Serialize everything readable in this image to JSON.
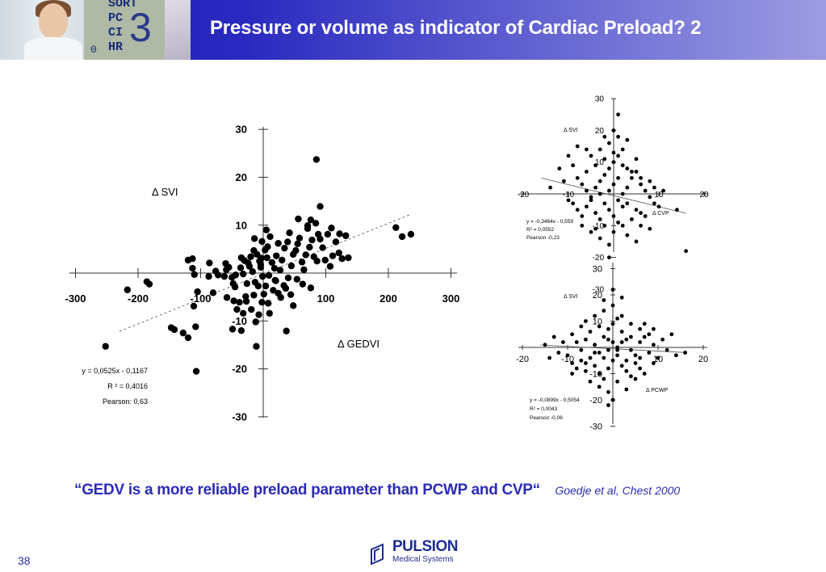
{
  "slide": {
    "title": "Pressure or volume as indicator of Cardiac Preload? 2",
    "page_number": "38",
    "quote": "“GEDV is a more reliable preload parameter than PCWP and CVP“",
    "citation": "Goedje et al, Chest 2000",
    "logo": {
      "name": "PULSION",
      "subtitle": "Medical Systems"
    },
    "header_photo": {
      "monitor_labels": [
        "SORT",
        "PC",
        "CI",
        "HR"
      ],
      "monitor_zero": "0",
      "monitor_big": "3"
    },
    "colors": {
      "header_start": "#1a1ab4",
      "header_end": "#9c9ce2",
      "accent_text": "#2b2bb8"
    }
  },
  "chart_data": [
    {
      "type": "scatter",
      "xlabel": "Δ GEDVI",
      "ylabel": "Δ SVI",
      "xlim": [
        -300,
        300
      ],
      "ylim": [
        -30,
        30
      ],
      "x_ticks": [
        -300,
        -200,
        -100,
        100,
        200,
        300
      ],
      "y_ticks": [
        30,
        20,
        10,
        -10,
        -20,
        -30
      ],
      "x_tick_labels": [
        "-300",
        "-200",
        "-100",
        "100",
        "200",
        "300"
      ],
      "y_tick_labels": [
        "30",
        "20",
        "10",
        "-10",
        "-20",
        "-30"
      ],
      "stats": [
        "y = 0,0525x - 0,1167",
        "R ² = 0,4016",
        "Pearson: 0,63"
      ],
      "regression": {
        "slope": 0.0525,
        "intercept": -0.1167,
        "x_range": [
          -230,
          235
        ]
      },
      "points": [
        [
          -252,
          -15.3
        ],
        [
          -217,
          -3.5
        ],
        [
          -186,
          -1.8
        ],
        [
          -182,
          -2.3
        ],
        [
          -147,
          -11.4
        ],
        [
          -142,
          -11.8
        ],
        [
          -128,
          -12.5
        ],
        [
          -120,
          -13.5
        ],
        [
          -108,
          -11.2
        ],
        [
          -113,
          1
        ],
        [
          -113,
          3
        ],
        [
          -120,
          2.7
        ],
        [
          -110,
          -0.3
        ],
        [
          -105,
          -3.9
        ],
        [
          -111,
          -6.9
        ],
        [
          -87,
          -0.7
        ],
        [
          -76,
          0.4
        ],
        [
          -60,
          2
        ],
        [
          -44,
          -0.4
        ],
        [
          -49,
          -11.7
        ],
        [
          -35,
          -12
        ],
        [
          -107,
          -20.5
        ],
        [
          -86,
          2.1
        ],
        [
          -80,
          -4.1
        ],
        [
          -72,
          -0.4
        ],
        [
          -62,
          -0.7
        ],
        [
          -59,
          0.7
        ],
        [
          -55,
          1.2
        ],
        [
          -50,
          -0.9
        ],
        [
          -48,
          -2.2
        ],
        [
          -45,
          -2.9
        ],
        [
          -36,
          1.1
        ],
        [
          -32,
          -0.2
        ],
        [
          -28,
          -4.9
        ],
        [
          -26,
          -2.2
        ],
        [
          -22,
          1.4
        ],
        [
          -17,
          0.3
        ],
        [
          -13,
          -1.9
        ],
        [
          -8,
          -2.7
        ],
        [
          -58,
          -5.1
        ],
        [
          -47,
          -5.8
        ],
        [
          -42,
          -7.6
        ],
        [
          -38,
          -6.1
        ],
        [
          -32,
          -8.4
        ],
        [
          -27,
          -5.9
        ],
        [
          -19,
          -7.6
        ],
        [
          -15,
          -4.6
        ],
        [
          -12,
          -10.2
        ],
        [
          -7,
          -8.7
        ],
        [
          -2,
          -6.1
        ],
        [
          -35,
          3.2
        ],
        [
          -30,
          2.6
        ],
        [
          -24,
          2.1
        ],
        [
          -20,
          3.4
        ],
        [
          -15,
          4.7
        ],
        [
          -10,
          3.9
        ],
        [
          -6,
          2.5
        ],
        [
          -3,
          3.1
        ],
        [
          -4,
          1.2
        ],
        [
          -1,
          -0.7
        ],
        [
          1,
          -4.4
        ],
        [
          4,
          -2.7
        ],
        [
          8,
          -6.3
        ],
        [
          10,
          -8.4
        ],
        [
          16,
          -3.6
        ],
        [
          20,
          -1.6
        ],
        [
          24,
          -4.2
        ],
        [
          28,
          -5.1
        ],
        [
          33,
          -2.6
        ],
        [
          40,
          -1
        ],
        [
          44,
          -4.5
        ],
        [
          48,
          -6.8
        ],
        [
          37,
          -12.1
        ],
        [
          -11,
          -15.3
        ],
        [
          -4,
          1.8
        ],
        [
          3,
          4.8
        ],
        [
          6,
          3.2
        ],
        [
          7,
          5.5
        ],
        [
          11,
          7.6
        ],
        [
          14,
          2.2
        ],
        [
          18,
          1
        ],
        [
          21,
          3.6
        ],
        [
          24,
          6.2
        ],
        [
          27,
          0.6
        ],
        [
          30,
          2.7
        ],
        [
          34,
          5.2
        ],
        [
          39,
          6.5
        ],
        [
          42,
          8.4
        ],
        [
          45,
          1.5
        ],
        [
          48,
          3.9
        ],
        [
          52,
          4.7
        ],
        [
          55,
          6.1
        ],
        [
          58,
          7.3
        ],
        [
          62,
          2.3
        ],
        [
          65,
          0.7
        ],
        [
          68,
          3.8
        ],
        [
          71,
          9.3
        ],
        [
          74,
          5.4
        ],
        [
          78,
          6.9
        ],
        [
          81,
          3.4
        ],
        [
          86,
          2.5
        ],
        [
          88,
          8.1
        ],
        [
          91,
          7.1
        ],
        [
          95,
          5.3
        ],
        [
          99,
          2.7
        ],
        [
          103,
          8.1
        ],
        [
          107,
          1.4
        ],
        [
          111,
          3.6
        ],
        [
          116,
          6.5
        ],
        [
          121,
          4.2
        ],
        [
          126,
          3
        ],
        [
          132,
          7.8
        ],
        [
          136,
          3.2
        ],
        [
          19,
          -1.5
        ],
        [
          9,
          -0.5
        ],
        [
          54,
          -1.3
        ],
        [
          63,
          -2.3
        ],
        [
          76,
          -3.1
        ],
        [
          71,
          9.9
        ],
        [
          76,
          11.1
        ],
        [
          84,
          10.4
        ],
        [
          91,
          13.9
        ],
        [
          109,
          9.4
        ],
        [
          122,
          8.2
        ],
        [
          56,
          11.3
        ],
        [
          5,
          9
        ],
        [
          -14,
          7.2
        ],
        [
          -2,
          6.6
        ],
        [
          36,
          -3.2
        ],
        [
          85,
          23.7
        ],
        [
          212,
          9.5
        ],
        [
          222,
          7.6
        ],
        [
          236,
          8.1
        ]
      ]
    },
    {
      "type": "scatter",
      "xlabel": "Δ CVP",
      "ylabel": "Δ SVI",
      "xlim": [
        -20,
        20
      ],
      "ylim": [
        -30,
        30
      ],
      "x_ticks": [
        -20,
        -10,
        10,
        20
      ],
      "y_ticks": [
        30,
        20,
        10,
        -10,
        -20,
        -30
      ],
      "x_tick_labels": [
        "-20",
        "-10",
        "10",
        "20"
      ],
      "y_tick_labels": [
        "30",
        "20",
        "10",
        "-10",
        "-20",
        "-30"
      ],
      "stats": [
        "y = -0,3464x - 0,559",
        "R² = 0,0552",
        "Pearson -0,23"
      ],
      "regression": {
        "slope": -0.3464,
        "intercept": -0.559,
        "x_range": [
          -16,
          16
        ]
      },
      "points": [
        [
          -9,
          9
        ],
        [
          -8,
          5
        ],
        [
          -7,
          3
        ],
        [
          -6,
          1
        ],
        [
          -5,
          -1
        ],
        [
          -4,
          2
        ],
        [
          -3,
          4
        ],
        [
          -2,
          6
        ],
        [
          -1,
          8
        ],
        [
          0,
          10
        ],
        [
          1,
          12
        ],
        [
          2,
          14
        ],
        [
          -9,
          -3
        ],
        [
          -8,
          -5
        ],
        [
          -7,
          -7
        ],
        [
          -6,
          -4
        ],
        [
          -5,
          -2
        ],
        [
          -4,
          -6
        ],
        [
          -3,
          -8
        ],
        [
          -2,
          -3
        ],
        [
          -1,
          -5
        ],
        [
          0,
          -7
        ],
        [
          1,
          -9
        ],
        [
          2,
          -4
        ],
        [
          3,
          2
        ],
        [
          4,
          5
        ],
        [
          5,
          7
        ],
        [
          6,
          3
        ],
        [
          7,
          1
        ],
        [
          8,
          -1
        ],
        [
          9,
          -3
        ],
        [
          -6,
          7
        ],
        [
          -4,
          9
        ],
        [
          -2,
          11
        ],
        [
          0,
          13
        ],
        [
          2,
          9
        ],
        [
          4,
          7
        ],
        [
          6,
          5
        ],
        [
          8,
          4
        ],
        [
          -5,
          12
        ],
        [
          -3,
          14
        ],
        [
          -1,
          16
        ],
        [
          1,
          18
        ],
        [
          -7,
          -10
        ],
        [
          -5,
          -12
        ],
        [
          -3,
          -14
        ],
        [
          -1,
          -16
        ],
        [
          0,
          -12
        ],
        [
          2,
          -10
        ],
        [
          4,
          -8
        ],
        [
          6,
          -6
        ],
        [
          -2,
          -10
        ],
        [
          1,
          -2
        ],
        [
          0,
          3
        ],
        [
          -1,
          1
        ],
        [
          3,
          -3
        ],
        [
          2,
          0
        ],
        [
          -3,
          0
        ],
        [
          5,
          -5
        ],
        [
          7,
          -7
        ],
        [
          9,
          2
        ],
        [
          10,
          -4
        ],
        [
          11,
          1
        ],
        [
          -11,
          4
        ],
        [
          -10,
          -2
        ],
        [
          -12,
          8
        ],
        [
          -10,
          12
        ],
        [
          -8,
          15
        ],
        [
          1,
          25
        ],
        [
          0,
          20
        ],
        [
          3,
          17
        ],
        [
          -2,
          18
        ],
        [
          14,
          -5
        ],
        [
          16,
          -18
        ],
        [
          6,
          -10
        ],
        [
          3,
          -13
        ],
        [
          -1,
          -20
        ],
        [
          5,
          -15
        ],
        [
          8,
          -11
        ],
        [
          -4,
          -11
        ],
        [
          1,
          5
        ],
        [
          3,
          8
        ],
        [
          5,
          11
        ],
        [
          -6,
          14
        ],
        [
          -14,
          2
        ]
      ]
    },
    {
      "type": "scatter",
      "xlabel": "Δ PCWP",
      "ylabel": "Δ SVI",
      "xlim": [
        -20,
        20
      ],
      "ylim": [
        -30,
        30
      ],
      "x_ticks": [
        -20,
        -10,
        10,
        20
      ],
      "y_ticks": [
        30,
        20,
        10,
        -10,
        -20,
        -30
      ],
      "x_tick_labels": [
        "-20",
        "-10",
        "10",
        "20"
      ],
      "y_tick_labels": [
        "30",
        "20",
        "10",
        "-10",
        "-20",
        "-30"
      ],
      "stats": [
        "y = -0,0899x - 0,5054",
        "R² = 0,0043",
        "Pearson -0,06"
      ],
      "regression": {
        "slope": -0.0899,
        "intercept": -0.5054,
        "x_range": [
          -16,
          16
        ]
      },
      "points": [
        [
          -9,
          5
        ],
        [
          -8,
          2
        ],
        [
          -7,
          -1
        ],
        [
          -6,
          3
        ],
        [
          -5,
          6
        ],
        [
          -4,
          1
        ],
        [
          -3,
          -2
        ],
        [
          -2,
          4
        ],
        [
          -1,
          7
        ],
        [
          0,
          9
        ],
        [
          1,
          11
        ],
        [
          2,
          6
        ],
        [
          3,
          3
        ],
        [
          4,
          -1
        ],
        [
          5,
          -3
        ],
        [
          6,
          2
        ],
        [
          7,
          4
        ],
        [
          8,
          -2
        ],
        [
          9,
          1
        ],
        [
          10,
          -4
        ],
        [
          -10,
          -3
        ],
        [
          -9,
          -6
        ],
        [
          -8,
          -8
        ],
        [
          -7,
          -5
        ],
        [
          -6,
          -9
        ],
        [
          -5,
          -4
        ],
        [
          -4,
          -7
        ],
        [
          -3,
          -10
        ],
        [
          -2,
          -12
        ],
        [
          -1,
          -8
        ],
        [
          0,
          -5
        ],
        [
          1,
          -3
        ],
        [
          2,
          -7
        ],
        [
          3,
          -9
        ],
        [
          4,
          -11
        ],
        [
          5,
          -6
        ],
        [
          6,
          -8
        ],
        [
          7,
          -10
        ],
        [
          -6,
          10
        ],
        [
          -4,
          12
        ],
        [
          -2,
          14
        ],
        [
          0,
          16
        ],
        [
          2,
          12
        ],
        [
          4,
          9
        ],
        [
          6,
          7
        ],
        [
          8,
          5
        ],
        [
          -3,
          8
        ],
        [
          -1,
          3
        ],
        [
          1,
          0
        ],
        [
          3,
          -5
        ],
        [
          -5,
          -13
        ],
        [
          -3,
          -15
        ],
        [
          -1,
          -17
        ],
        [
          1,
          -13
        ],
        [
          3,
          -16
        ],
        [
          5,
          -12
        ],
        [
          0,
          -20
        ],
        [
          -1,
          -22
        ],
        [
          -11,
          2
        ],
        [
          -12,
          -2
        ],
        [
          -13,
          4
        ],
        [
          11,
          3
        ],
        [
          12,
          -1
        ],
        [
          14,
          -3
        ],
        [
          -15,
          1
        ],
        [
          16,
          -2
        ],
        [
          -2,
          -4
        ],
        [
          2,
          2
        ],
        [
          -4,
          -2
        ],
        [
          4,
          4
        ],
        [
          6,
          -4
        ],
        [
          -6,
          -6
        ],
        [
          0,
          2
        ],
        [
          1,
          -1
        ],
        [
          -1,
          -1
        ],
        [
          -2,
          18
        ],
        [
          0,
          22
        ],
        [
          2,
          19
        ],
        [
          -7,
          8
        ],
        [
          7,
          9
        ],
        [
          9,
          7
        ],
        [
          -9,
          -10
        ],
        [
          9,
          -6
        ],
        [
          13,
          5
        ],
        [
          -14,
          -4
        ]
      ]
    }
  ]
}
